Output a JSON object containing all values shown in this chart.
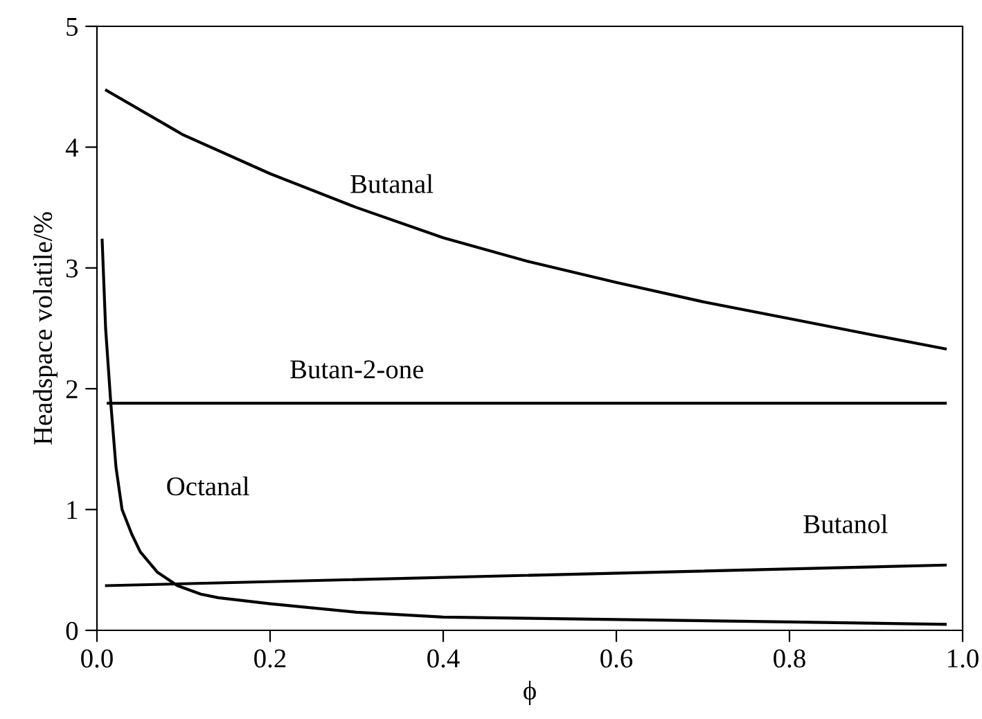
{
  "chart_data": {
    "type": "line",
    "xlabel": "ϕ",
    "ylabel": "Headspace volatile/%",
    "xlim": [
      0,
      1.0
    ],
    "ylim": [
      0,
      5
    ],
    "xticks": [
      {
        "value": 0,
        "label": "0.0"
      },
      0.2,
      0.4,
      0.6,
      0.8,
      {
        "value": 1.0,
        "label": "1.0"
      }
    ],
    "yticks": [
      0,
      1,
      2,
      3,
      4,
      5
    ],
    "grid": false,
    "legend": false,
    "marker": "none",
    "line_style": "solid",
    "series": [
      {
        "name": "Butanal",
        "color": "#000000",
        "x": [
          0.011,
          0.1,
          0.2,
          0.3,
          0.4,
          0.5,
          0.6,
          0.7,
          0.8,
          0.9,
          0.98
        ],
        "values": [
          4.47,
          4.1,
          3.78,
          3.5,
          3.25,
          3.05,
          2.88,
          2.72,
          2.58,
          2.44,
          2.33
        ]
      },
      {
        "name": "Butan-2-one",
        "color": "#000000",
        "x": [
          0.013,
          0.98
        ],
        "values": [
          1.88,
          1.88
        ]
      },
      {
        "name": "Butanol",
        "color": "#000000",
        "x": [
          0.011,
          0.98
        ],
        "values": [
          0.37,
          0.54
        ]
      },
      {
        "name": "Octanal",
        "color": "#000000",
        "x": [
          0.006,
          0.01,
          0.016,
          0.022,
          0.029,
          0.04,
          0.05,
          0.07,
          0.093,
          0.12,
          0.14,
          0.2,
          0.3,
          0.4,
          0.5,
          0.6,
          0.8,
          0.98
        ],
        "values": [
          3.23,
          2.5,
          1.88,
          1.35,
          1.0,
          0.8,
          0.65,
          0.48,
          0.37,
          0.3,
          0.27,
          0.22,
          0.15,
          0.11,
          0.1,
          0.09,
          0.07,
          0.05
        ]
      }
    ]
  }
}
